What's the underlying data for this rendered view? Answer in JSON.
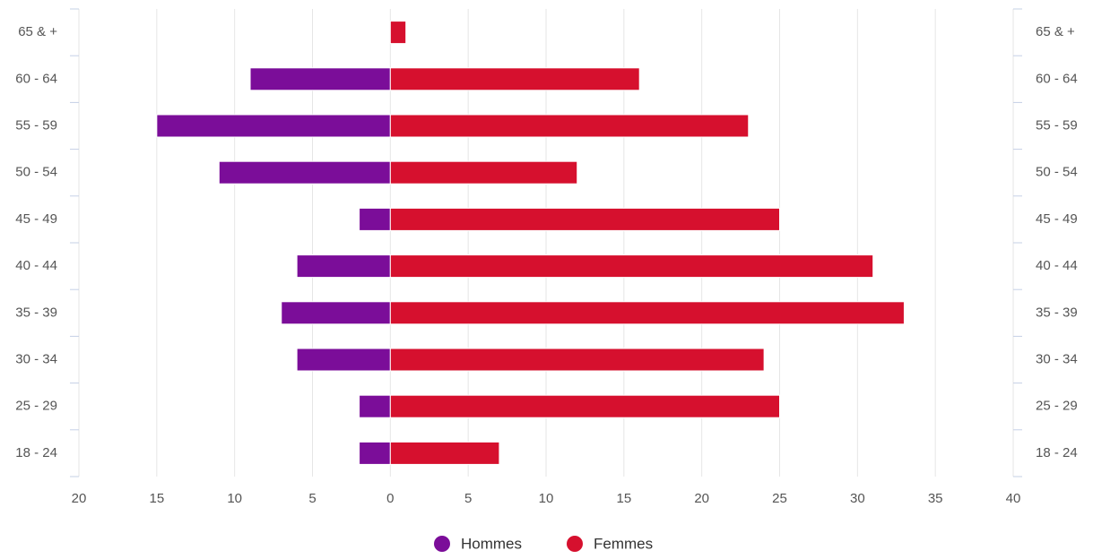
{
  "chart_data": {
    "type": "bar",
    "orientation": "horizontal",
    "categories": [
      "65 & +",
      "60 - 64",
      "55 - 59",
      "50 - 54",
      "45 - 49",
      "40 - 44",
      "35 - 39",
      "30 - 34",
      "25 - 29",
      "18 - 24"
    ],
    "series": [
      {
        "name": "Hommes",
        "color": "#7b0d99",
        "values": [
          0,
          -9,
          -15,
          -11,
          -2,
          -6,
          -7,
          -6,
          -2,
          -2
        ]
      },
      {
        "name": "Femmes",
        "color": "#d6102e",
        "values": [
          1,
          16,
          23,
          12,
          25,
          31,
          33,
          24,
          25,
          7
        ]
      }
    ],
    "xlim": [
      -20,
      40
    ],
    "xticks": [
      {
        "value": -20,
        "label": "20"
      },
      {
        "value": -15,
        "label": "15"
      },
      {
        "value": -10,
        "label": "10"
      },
      {
        "value": -5,
        "label": "5"
      },
      0,
      5,
      10,
      15,
      20,
      25,
      30,
      35,
      40
    ],
    "grid": true,
    "legend": "bottom"
  }
}
